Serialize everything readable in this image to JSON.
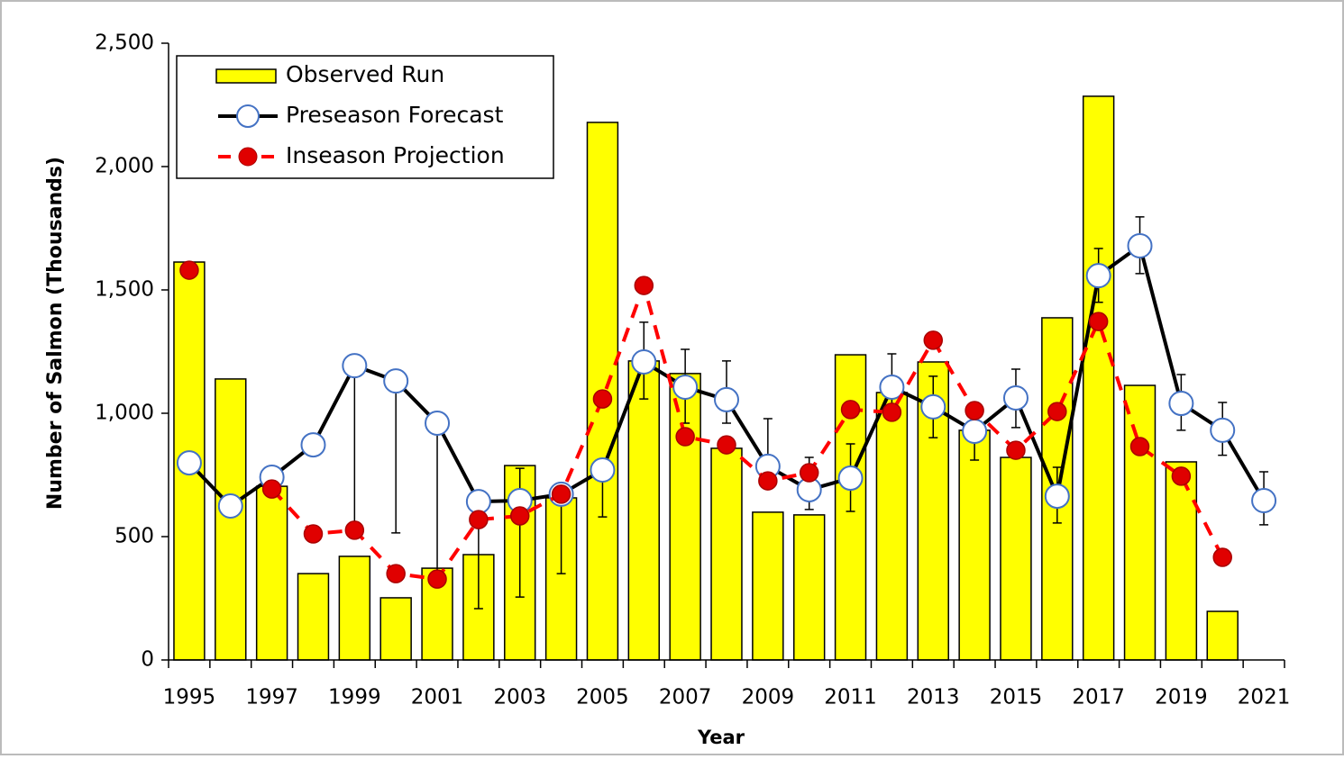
{
  "chart_data": {
    "type": "bar_line",
    "x_label": "Year",
    "y_label": "Number of Salmon (Thousands)",
    "categories": [
      "1995",
      null,
      "1997",
      null,
      "1999",
      null,
      "2001",
      null,
      "2003",
      null,
      "2005",
      null,
      "2007",
      null,
      "2009",
      null,
      "2011",
      null,
      "2013",
      null,
      "2015",
      null,
      "2017",
      null,
      "2019",
      null,
      "2021"
    ],
    "ylim": [
      0,
      2500
    ],
    "yticks": [
      0,
      500,
      {
        "value": 1000,
        "label": "1,000"
      },
      {
        "value": 1500,
        "label": "1,500"
      },
      {
        "value": 2000,
        "label": "2,000"
      },
      {
        "value": 2500,
        "label": "2,500"
      }
    ],
    "legend": "upper left",
    "series": [
      {
        "name": "Observed Run",
        "kind": "bar",
        "color": "#ffff00",
        "values": [
          1613,
          1139,
          704,
          350,
          420,
          252,
          372,
          427,
          788,
          657,
          2179,
          1212,
          1161,
          858,
          599,
          588,
          1237,
          1084,
          1208,
          931,
          821,
          1387,
          2285,
          1113,
          803,
          197,
          null
        ]
      },
      {
        "name": "Preseason Forecast",
        "kind": "line",
        "color": "#000000",
        "marker_color": "#4472c4",
        "values": [
          799,
          624,
          741,
          872,
          1193,
          1131,
          960,
          642,
          646,
          672,
          770,
          1208,
          1106,
          1055,
          785,
          690,
          737,
          1106,
          1026,
          927,
          1062,
          664,
          1558,
          1679,
          1040,
          931,
          646
        ],
        "error_low": [
          null,
          null,
          null,
          null,
          558,
          515,
          350,
          208,
          255,
          350,
          580,
          1058,
          960,
          960,
          700,
          610,
          602,
          990,
          901,
          810,
          942,
          555,
          1450,
          1566,
          931,
          830,
          548
        ],
        "error_high": [
          null,
          null,
          null,
          null,
          1193,
          1131,
          960,
          558,
          777,
          650,
          766,
          1369,
          1259,
          1212,
          978,
          821,
          876,
          1241,
          1150,
          1000,
          1179,
          781,
          1668,
          1796,
          1157,
          1044,
          763
        ]
      },
      {
        "name": "Inseason Projection",
        "kind": "dashed",
        "color": "#ff0000",
        "marker_color": "#e00000",
        "values": [
          1580,
          null,
          693,
          511,
          526,
          350,
          328,
          569,
          584,
          672,
          1058,
          1518,
          905,
          872,
          726,
          759,
          1015,
          1004,
          1296,
          1011,
          850,
          1007,
          1372,
          865,
          745,
          416,
          null
        ]
      }
    ]
  }
}
